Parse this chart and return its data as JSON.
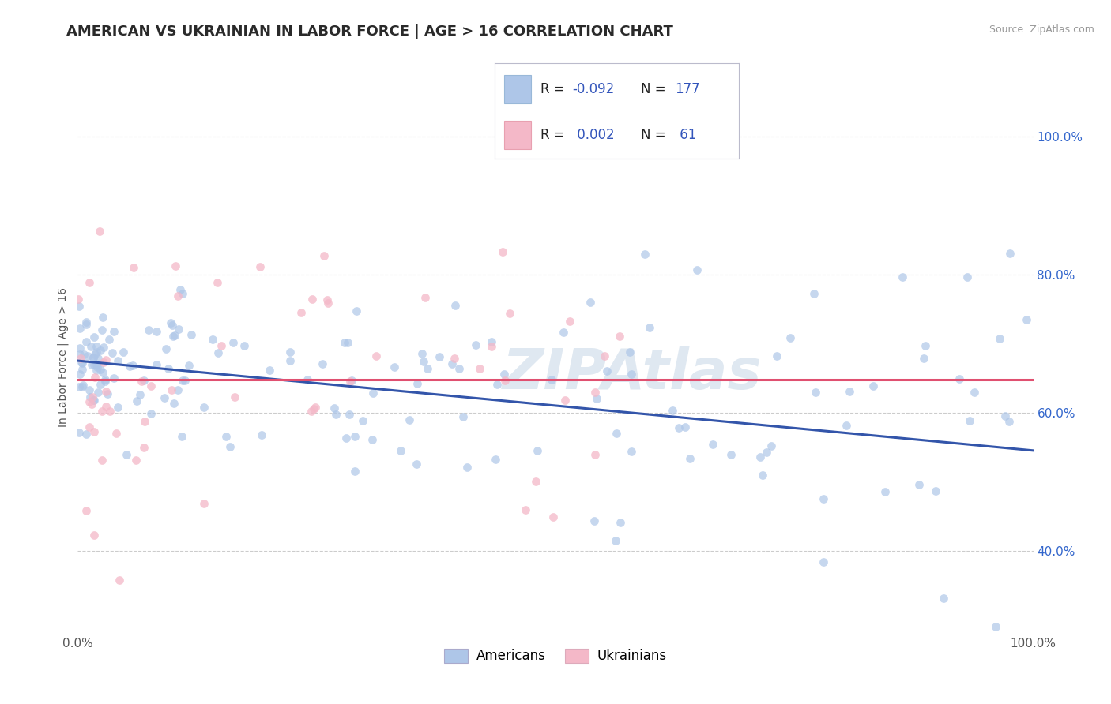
{
  "title": "AMERICAN VS UKRAINIAN IN LABOR FORCE | AGE > 16 CORRELATION CHART",
  "source": "Source: ZipAtlas.com",
  "ylabel": "In Labor Force | Age > 16",
  "watermark": "ZIPAtlas",
  "legend_american": "Americans",
  "legend_ukrainian": "Ukrainians",
  "R_american": -0.092,
  "N_american": 177,
  "R_ukrainian": 0.002,
  "N_ukrainian": 61,
  "color_american": "#aec6e8",
  "color_ukrainian": "#f4b8c8",
  "line_color_american": "#3355aa",
  "line_color_ukrainian": "#e05070",
  "bg_color": "#ffffff",
  "grid_color": "#cccccc",
  "xlim": [
    0.0,
    1.0
  ],
  "ylim": [
    0.28,
    1.08
  ],
  "x_ticks": [
    0.0,
    1.0
  ],
  "x_tick_labels": [
    "0.0%",
    "100.0%"
  ],
  "y_ticks": [
    0.4,
    0.6,
    0.8,
    1.0
  ],
  "y_tick_labels": [
    "40.0%",
    "60.0%",
    "80.0%",
    "100.0%"
  ],
  "title_fontsize": 13,
  "axis_fontsize": 10,
  "tick_fontsize": 11,
  "watermark_fontsize": 52,
  "watermark_color": "#b8cce0",
  "watermark_alpha": 0.45,
  "blue_line_y0": 0.675,
  "blue_line_y1": 0.545,
  "pink_line_y": 0.648
}
